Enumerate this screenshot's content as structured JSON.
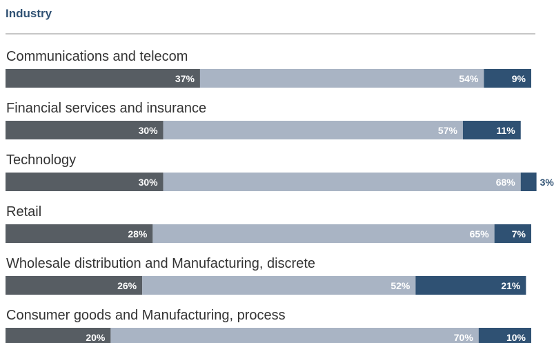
{
  "chart_data": {
    "type": "bar",
    "stacked": true,
    "orientation": "horizontal",
    "title": "Industry",
    "categories": [
      "Communications and telecom",
      "Financial services and insurance",
      "Technology",
      "Retail",
      "Wholesale distribution and Manufacturing, discrete",
      "Consumer goods and Manufacturing, process"
    ],
    "series": [
      {
        "values": [
          37,
          30,
          30,
          28,
          26,
          20
        ],
        "labels": [
          "37%",
          "30%",
          "30%",
          "28%",
          "26%",
          "20%"
        ],
        "color": "#575d63",
        "label_color": "#ffffff"
      },
      {
        "values": [
          54,
          57,
          68,
          65,
          52,
          70
        ],
        "labels": [
          "54%",
          "57%",
          "68%",
          "65%",
          "52%",
          "70%"
        ],
        "color": "#a9b4c4",
        "label_color": "#ffffff"
      },
      {
        "values": [
          9,
          11,
          3,
          7,
          21,
          10
        ],
        "labels": [
          "9%",
          "11%",
          "3%",
          "7%",
          "21%",
          "10%"
        ],
        "color": "#2f5173",
        "label_color": "#ffffff",
        "outside_label_color": "#2f5173"
      }
    ],
    "xlim": [
      0,
      100
    ],
    "legend": "none",
    "grid": false
  },
  "colors": {
    "title": "#2f5173",
    "category_text": "#333333",
    "divider": "#8c8c8c"
  }
}
